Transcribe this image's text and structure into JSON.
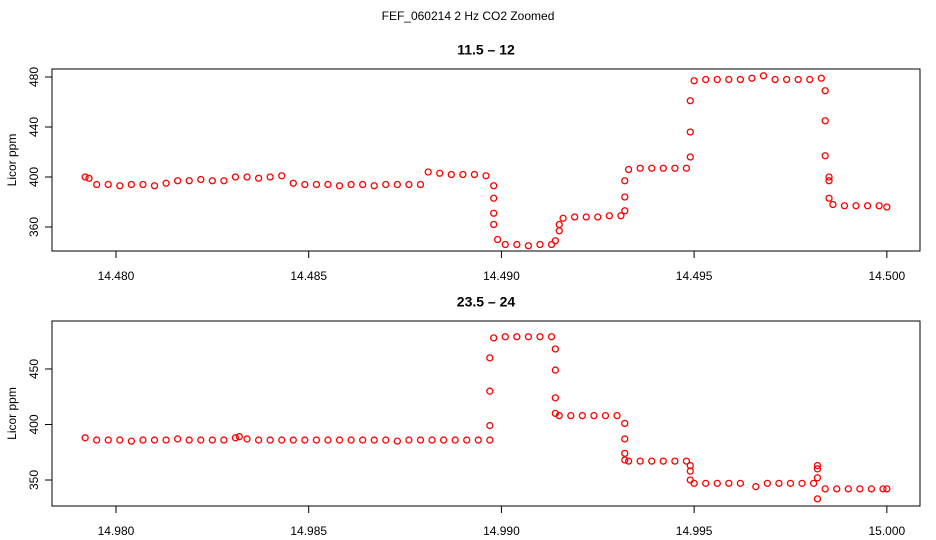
{
  "title": "FEF_060214  2 Hz CO2 Zoomed",
  "chart_data": [
    {
      "type": "scatter",
      "title": "11.5 – 12",
      "ylabel": "Licor ppm",
      "color": "#ff0000",
      "xlim": [
        14.47834,
        14.50086
      ],
      "ylim": [
        340.8,
        486.4
      ],
      "xticks": [
        {
          "value": 14.48,
          "label": "14.480"
        },
        {
          "value": 14.485,
          "label": "14.485"
        },
        {
          "value": 14.49,
          "label": "14.490"
        },
        {
          "value": 14.495,
          "label": "14.495"
        },
        {
          "value": 14.5,
          "label": "14.500"
        }
      ],
      "yticks": [
        360,
        400,
        440,
        480
      ],
      "x": [
        14.4792,
        14.4793,
        14.4795,
        14.4798,
        14.4801,
        14.4804,
        14.4807,
        14.481,
        14.4813,
        14.4816,
        14.4819,
        14.4822,
        14.4825,
        14.4828,
        14.4831,
        14.4834,
        14.4837,
        14.484,
        14.4843,
        14.4846,
        14.4849,
        14.4852,
        14.4855,
        14.4858,
        14.4861,
        14.4864,
        14.4867,
        14.487,
        14.4873,
        14.4876,
        14.4879,
        14.4881,
        14.4884,
        14.4887,
        14.489,
        14.4893,
        14.4896,
        14.4898,
        14.4898,
        14.4898,
        14.4898,
        14.4899,
        14.4901,
        14.4904,
        14.4907,
        14.491,
        14.4913,
        14.4914,
        14.4915,
        14.4915,
        14.4916,
        14.4919,
        14.4922,
        14.4925,
        14.4928,
        14.4931,
        14.4932,
        14.4932,
        14.4932,
        14.4933,
        14.4936,
        14.4939,
        14.4942,
        14.4945,
        14.4948,
        14.4949,
        14.4949,
        14.4949,
        14.495,
        14.4953,
        14.4956,
        14.4959,
        14.4962,
        14.4965,
        14.4968,
        14.4971,
        14.4974,
        14.4977,
        14.498,
        14.4983,
        14.4984,
        14.4984,
        14.4984,
        14.4985,
        14.4985,
        14.4985,
        14.4986,
        14.4989,
        14.4992,
        14.4995,
        14.4998,
        14.5
      ],
      "values": [
        400,
        399,
        394,
        394,
        393,
        394,
        394,
        393,
        395,
        397,
        397,
        398,
        397,
        397,
        400,
        400,
        399,
        400,
        401,
        395,
        394,
        394,
        394,
        393,
        394,
        394,
        393,
        394,
        394,
        394,
        394,
        404,
        403,
        402,
        402,
        402,
        401,
        393,
        383,
        371,
        362,
        350,
        346,
        346,
        345,
        346,
        346,
        349,
        357,
        362,
        367,
        368,
        368,
        368,
        369,
        369,
        373,
        384,
        397,
        406,
        407,
        407,
        407,
        407,
        407,
        416,
        436,
        461,
        477,
        478,
        478,
        478,
        478,
        479,
        481,
        478,
        478,
        478,
        478,
        479,
        469,
        445,
        417,
        400,
        397,
        383,
        378,
        377,
        377,
        377,
        377,
        376
      ]
    },
    {
      "type": "scatter",
      "title": "23.5 – 24",
      "ylabel": "Licor ppm",
      "color": "#ff0000",
      "xlim": [
        14.97834,
        15.00086
      ],
      "ylim": [
        326.6,
        493.2
      ],
      "xticks": [
        {
          "value": 14.98,
          "label": "14.980"
        },
        {
          "value": 14.985,
          "label": "14.985"
        },
        {
          "value": 14.99,
          "label": "14.990"
        },
        {
          "value": 14.995,
          "label": "14.995"
        },
        {
          "value": 15,
          "label": "15.000"
        }
      ],
      "yticks": [
        350,
        400,
        450
      ],
      "x": [
        14.9792,
        14.9795,
        14.9798,
        14.9801,
        14.9804,
        14.9807,
        14.981,
        14.9813,
        14.9816,
        14.9819,
        14.9822,
        14.9825,
        14.9828,
        14.9831,
        14.9832,
        14.9834,
        14.9837,
        14.984,
        14.9843,
        14.9846,
        14.9849,
        14.9852,
        14.9855,
        14.9858,
        14.9861,
        14.9864,
        14.9867,
        14.987,
        14.9873,
        14.9876,
        14.9879,
        14.9882,
        14.9885,
        14.9888,
        14.9891,
        14.9894,
        14.9897,
        14.9897,
        14.9897,
        14.9897,
        14.9898,
        14.9901,
        14.9904,
        14.9907,
        14.991,
        14.9913,
        14.9914,
        14.9914,
        14.9914,
        14.9914,
        14.9915,
        14.9918,
        14.9921,
        14.9924,
        14.9927,
        14.993,
        14.9932,
        14.9932,
        14.9932,
        14.9932,
        14.9933,
        14.9936,
        14.9939,
        14.9942,
        14.9945,
        14.9948,
        14.9949,
        14.9949,
        14.9949,
        14.995,
        14.9953,
        14.9956,
        14.9959,
        14.9962,
        14.9966,
        14.9969,
        14.9972,
        14.9975,
        14.9978,
        14.9981,
        14.9982,
        14.9982,
        14.9982,
        14.9982,
        14.9984,
        14.9987,
        14.999,
        14.9993,
        14.9996,
        14.9999,
        15.0
      ],
      "values": [
        388,
        386,
        386,
        386,
        385,
        386,
        386,
        386,
        387,
        386,
        386,
        386,
        386,
        388,
        389,
        387,
        386,
        386,
        386,
        386,
        386,
        386,
        386,
        386,
        386,
        386,
        386,
        386,
        385,
        386,
        386,
        386,
        386,
        386,
        386,
        386,
        386,
        399,
        430,
        460,
        478,
        479,
        479,
        479,
        479,
        479,
        468,
        449,
        424,
        410,
        408,
        408,
        408,
        408,
        408,
        408,
        401,
        387,
        374,
        368,
        367,
        367,
        367,
        367,
        367,
        367,
        363,
        358,
        350,
        347,
        347,
        347,
        347,
        347,
        344,
        347,
        347,
        347,
        347,
        347,
        363,
        360,
        352,
        333,
        342,
        342,
        342,
        342,
        342,
        342,
        342
      ]
    }
  ]
}
